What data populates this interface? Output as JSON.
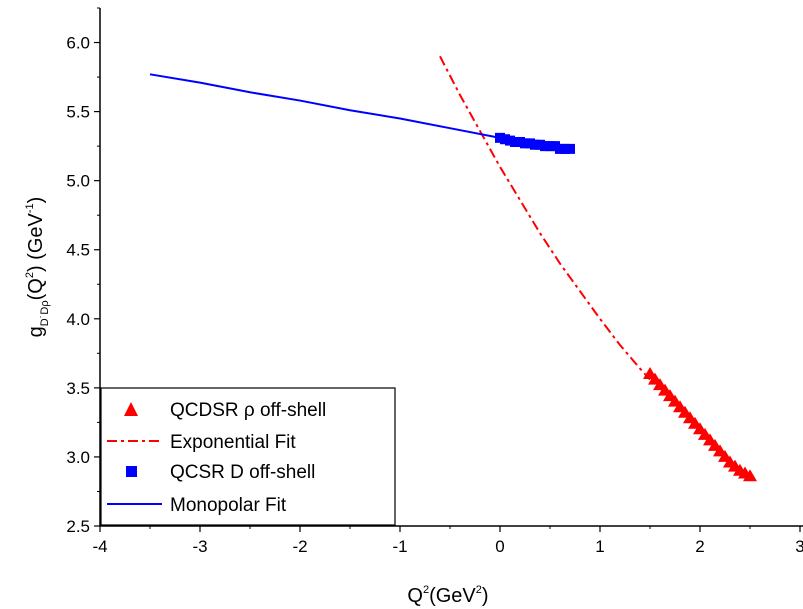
{
  "chart_data": {
    "type": "scatter",
    "xlim": [
      -4,
      3
    ],
    "ylim": [
      2.5,
      6.25
    ],
    "x_ticks": [
      -4,
      -3,
      -2,
      -1,
      0,
      1,
      2,
      3
    ],
    "x_tick_labels": [
      "-4",
      "-3",
      "-2",
      "-1",
      "0",
      "1",
      "2",
      "3"
    ],
    "y_ticks": [
      2.5,
      3.0,
      3.5,
      4.0,
      4.5,
      5.0,
      5.5,
      6.0
    ],
    "y_tick_labels": [
      "2.5",
      "3.0",
      "3.5",
      "4.0",
      "4.5",
      "5.0",
      "5.5",
      "6.0"
    ],
    "xlabel": {
      "base": "Q",
      "sup1": "2",
      "mid": "(GeV",
      "sup2": "2",
      "end": ")"
    },
    "ylabel": {
      "base": "g",
      "sub": "D˙Dρ",
      "mid": "(Q",
      "sup1": "2",
      "mid2": ") (GeV",
      "sup2": "-1",
      "end": ")"
    },
    "grid": false,
    "legend_position": "bottom-left",
    "series": [
      {
        "name": "QCDSR ρ off-shell",
        "style": "markers",
        "marker": "triangle",
        "color": "#ff0000",
        "x": [
          1.5,
          1.55,
          1.6,
          1.65,
          1.7,
          1.75,
          1.8,
          1.85,
          1.9,
          1.95,
          2.0,
          2.05,
          2.1,
          2.15,
          2.2,
          2.25,
          2.3,
          2.35,
          2.4,
          2.45,
          2.5
        ],
        "y": [
          3.6,
          3.56,
          3.52,
          3.48,
          3.44,
          3.4,
          3.36,
          3.32,
          3.28,
          3.24,
          3.2,
          3.16,
          3.12,
          3.08,
          3.04,
          3.0,
          2.96,
          2.93,
          2.9,
          2.88,
          2.86
        ]
      },
      {
        "name": "Exponential Fit",
        "style": "dash-dot-line",
        "color": "#ff0000",
        "x": [
          -0.6,
          -0.4,
          -0.2,
          0.0,
          0.2,
          0.4,
          0.6,
          0.8,
          1.0,
          1.2,
          1.4,
          1.5
        ],
        "y": [
          5.9,
          5.62,
          5.36,
          5.1,
          4.86,
          4.62,
          4.4,
          4.2,
          4.0,
          3.81,
          3.64,
          3.56
        ]
      },
      {
        "name": "QCSR D off-shell",
        "style": "markers",
        "marker": "square",
        "color": "#0000ff",
        "x": [
          0.0,
          0.05,
          0.1,
          0.15,
          0.2,
          0.25,
          0.3,
          0.35,
          0.4,
          0.45,
          0.5,
          0.55,
          0.6,
          0.65,
          0.7
        ],
        "y": [
          5.31,
          5.3,
          5.29,
          5.28,
          5.28,
          5.27,
          5.27,
          5.26,
          5.26,
          5.25,
          5.25,
          5.25,
          5.23,
          5.23,
          5.23
        ]
      },
      {
        "name": "Monopolar Fit",
        "style": "solid-line",
        "color": "#0000ff",
        "x": [
          -3.5,
          -3.0,
          -2.5,
          -2.0,
          -1.5,
          -1.0,
          -0.5,
          0.0
        ],
        "y": [
          5.77,
          5.71,
          5.64,
          5.58,
          5.51,
          5.45,
          5.38,
          5.31
        ]
      }
    ]
  }
}
